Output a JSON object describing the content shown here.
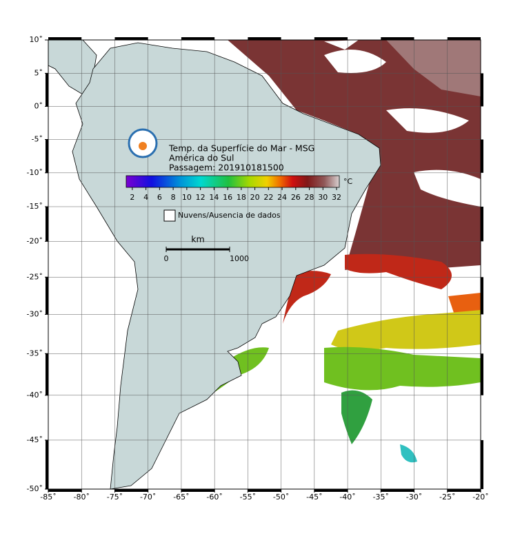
{
  "map": {
    "title": "Temp. da Superfície do Mar - MSG",
    "region": "América do Sul",
    "pass": "Passagem: 201910181500",
    "xlim": [
      -85,
      -20
    ],
    "ylim": [
      -50,
      10
    ],
    "lon_ticks": [
      {
        "value": -85,
        "label": "-85˚"
      },
      {
        "value": -80,
        "label": "-80˚"
      },
      {
        "value": -75,
        "label": "-75˚"
      },
      {
        "value": -70,
        "label": "-70˚"
      },
      {
        "value": -65,
        "label": "-65˚"
      },
      {
        "value": -60,
        "label": "-60˚"
      },
      {
        "value": -55,
        "label": "-55˚"
      },
      {
        "value": -50,
        "label": "-50˚"
      },
      {
        "value": -45,
        "label": "-45˚"
      },
      {
        "value": -40,
        "label": "-40˚"
      },
      {
        "value": -35,
        "label": "-35˚"
      },
      {
        "value": -30,
        "label": "-30˚"
      },
      {
        "value": -25,
        "label": "-25˚"
      },
      {
        "value": -20,
        "label": "-20˚"
      }
    ],
    "lat_ticks": [
      {
        "value": 10,
        "label": "10˚"
      },
      {
        "value": 5,
        "label": "5˚"
      },
      {
        "value": 0,
        "label": "0˚"
      },
      {
        "value": -5,
        "label": "-5˚"
      },
      {
        "value": -10,
        "label": "-10˚"
      },
      {
        "value": -15,
        "label": "-15˚"
      },
      {
        "value": -20,
        "label": "-20˚"
      },
      {
        "value": -25,
        "label": "-25˚"
      },
      {
        "value": -30,
        "label": "-30˚"
      },
      {
        "value": -35,
        "label": "-35˚"
      },
      {
        "value": -40,
        "label": "-40˚"
      },
      {
        "value": -45,
        "label": "-45˚"
      },
      {
        "value": -50,
        "label": "-50˚"
      }
    ],
    "colorbar": {
      "unit": "°C",
      "lim": [
        1.1,
        32.4
      ],
      "ticks": [
        2,
        4,
        6,
        8,
        10,
        12,
        14,
        16,
        18,
        20,
        22,
        24,
        26,
        28,
        30,
        32
      ]
    },
    "legend": "Nuvens/Ausencia de dados",
    "scale": {
      "unit": "km",
      "ticks": [
        0,
        1000
      ]
    }
  }
}
